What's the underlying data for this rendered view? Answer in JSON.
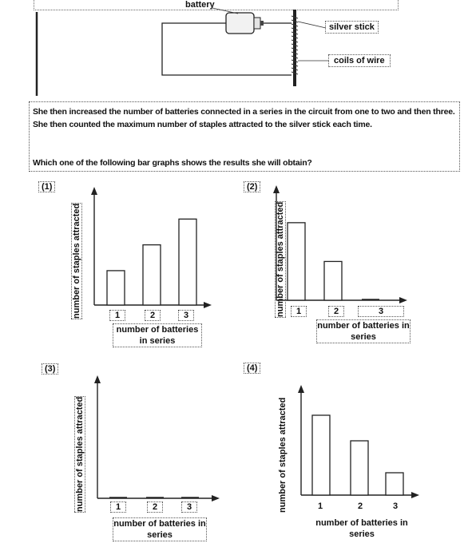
{
  "diagram": {
    "battery_label": "battery",
    "silver_stick_label": "silver stick",
    "coils_label": "coils of wire"
  },
  "question": {
    "paragraph": "She then increased the number of batteries connected in a series in the circuit from one to two and then three. She then counted the maximum number of staples attracted to the silver stick each time.",
    "prompt": "Which one of the following bar graphs shows the results she will obtain?"
  },
  "chart_data": [
    {
      "type": "bar",
      "option": "(1)",
      "categories": [
        "1",
        "2",
        "3"
      ],
      "values": [
        2,
        3.5,
        5
      ],
      "ylim": [
        0,
        6.5
      ],
      "xlabel": "number of batteries in series",
      "ylabel": "number of staples attracted"
    },
    {
      "type": "bar",
      "option": "(2)",
      "categories": [
        "1",
        "2",
        "3"
      ],
      "values": [
        5,
        2.5,
        0
      ],
      "ylim": [
        0,
        7
      ],
      "xlabel": "number of batteries in series",
      "ylabel": "number of staples attracted"
    },
    {
      "type": "bar",
      "option": "(3)",
      "categories": [
        "1",
        "2",
        "3"
      ],
      "values": [
        0,
        0,
        0
      ],
      "ylim": [
        0,
        7
      ],
      "xlabel": "number of batteries in series",
      "ylabel": "number of staples attracted"
    },
    {
      "type": "bar",
      "option": "(4)",
      "categories": [
        "1",
        "2",
        "3"
      ],
      "values": [
        5,
        3.4,
        1.4
      ],
      "ylim": [
        0,
        6.5
      ],
      "xlabel": "number of batteries in series",
      "ylabel": "number of staples attracted"
    }
  ]
}
